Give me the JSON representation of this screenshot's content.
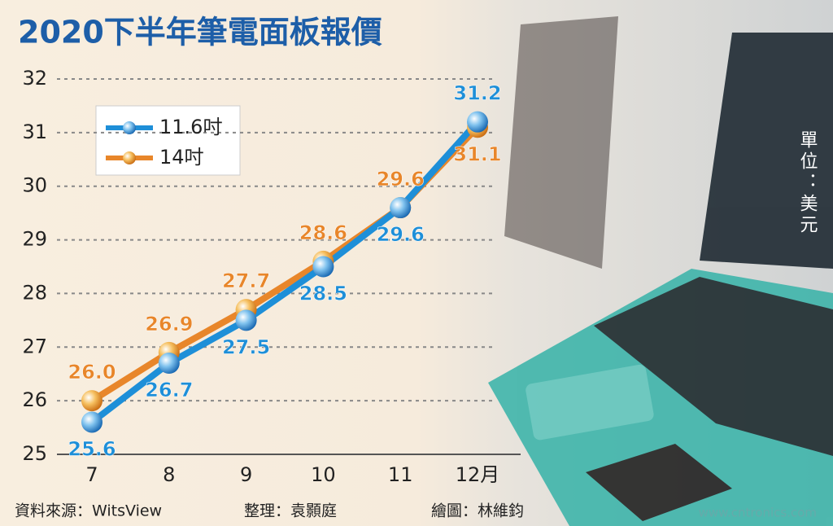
{
  "chart_data": {
    "type": "line",
    "title": "2020下半年筆電面板報價",
    "unit": "單位：美元",
    "categories": [
      "7",
      "8",
      "9",
      "10",
      "11",
      "12月"
    ],
    "series": [
      {
        "name": "11.6吋",
        "color": "#1e8fd8",
        "values": [
          25.6,
          26.7,
          27.5,
          28.5,
          29.6,
          31.2
        ],
        "value_labels": [
          "25.6",
          "26.7",
          "27.5",
          "28.5",
          "29.6",
          "31.2"
        ]
      },
      {
        "name": "14吋",
        "color": "#e8862a",
        "values": [
          26.0,
          26.9,
          27.7,
          28.6,
          29.6,
          31.1
        ],
        "value_labels": [
          "26.0",
          "26.9",
          "27.7",
          "28.6",
          "29.6",
          "31.1"
        ]
      }
    ],
    "ylim": [
      25,
      32
    ],
    "yticks": [
      25,
      26,
      27,
      28,
      29,
      30,
      31,
      32
    ],
    "grid": true,
    "source": "資料來源：WitsView",
    "editor": "整理：袁顥庭",
    "artist": "繪圖：林維鈞",
    "watermark": "www.cntronics.com"
  }
}
